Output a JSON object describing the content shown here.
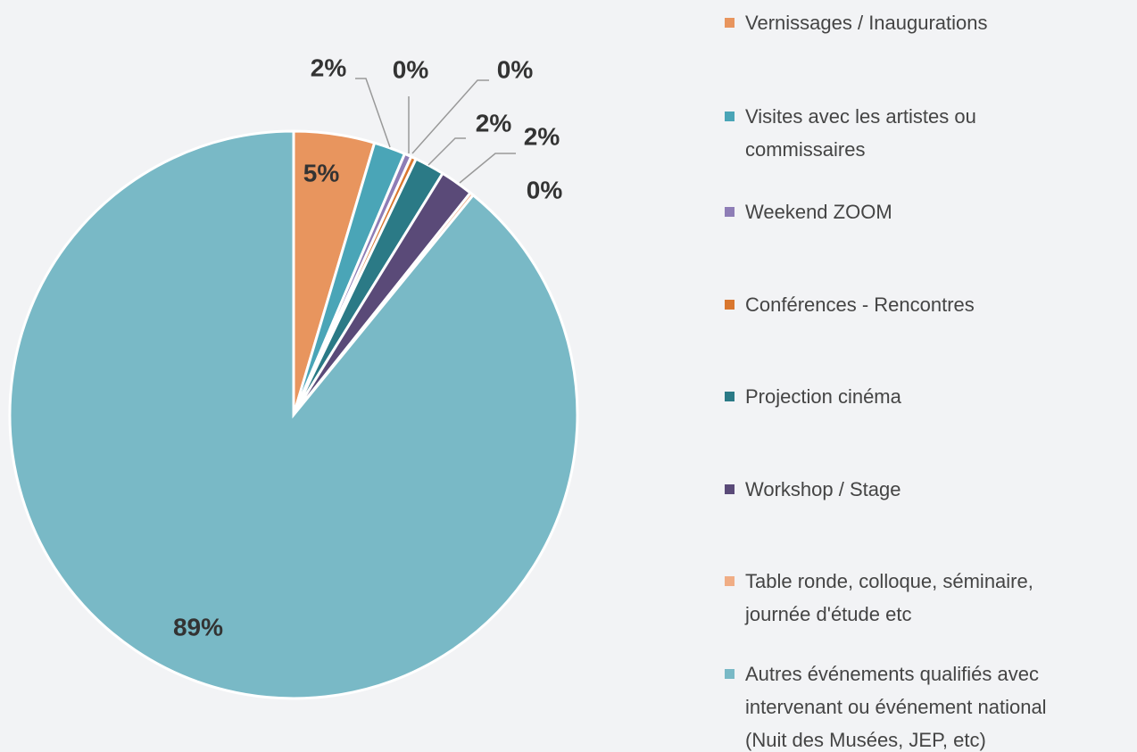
{
  "chart_data": {
    "type": "pie",
    "categories": [
      "Vernissages / Inaugurations",
      "Visites avec les artistes ou commissaires",
      "Weekend ZOOM",
      "Conférences - Rencontres",
      "Projection cinéma",
      "Workshop / Stage",
      "Table ronde, colloque, séminaire, journée d'étude etc",
      "Autres événements qualifiés avec intervenant ou événement national (Nuit des Musées, JEP, etc)"
    ],
    "values": [
      4.6,
      1.8,
      0.4,
      0.3,
      1.7,
      1.9,
      0.2,
      89.1
    ],
    "value_labels": [
      "5%",
      "2%",
      "0%",
      "0%",
      "2%",
      "2%",
      "0%",
      "89%"
    ],
    "colors": [
      "#e8955e",
      "#4aa5b7",
      "#8e7db6",
      "#d9772f",
      "#2b7a86",
      "#5a4a78",
      "#f0ad85",
      "#79b9c6"
    ]
  }
}
